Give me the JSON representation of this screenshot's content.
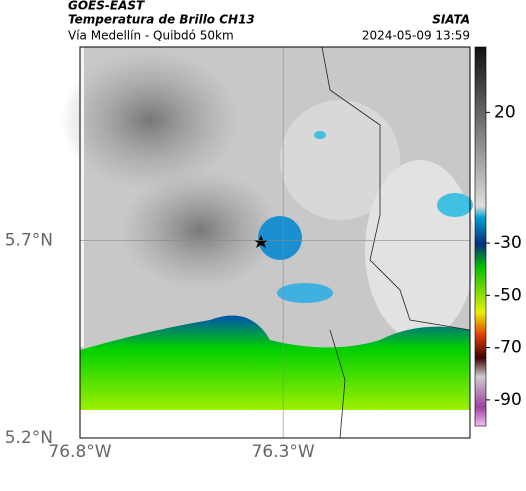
{
  "header": {
    "satellite": "GOES-EAST",
    "product": "Temperatura de Brillo CH13",
    "agency": "SIATA",
    "route": "Vía Medellín - Quibdó 50km",
    "timestamp": "2024-05-09 13:59"
  },
  "map": {
    "xlim": [
      -76.8,
      -75.84
    ],
    "ylim": [
      5.2,
      6.19
    ],
    "xticks": [
      {
        "value": -76.8,
        "label": "76.8°W"
      },
      {
        "value": -76.3,
        "label": "76.3°W"
      }
    ],
    "yticks": [
      {
        "value": 5.7,
        "label": "5.7°N"
      },
      {
        "value": 5.2,
        "label": "5.2°N"
      }
    ]
  },
  "colorbar": {
    "lim": [
      -100,
      45
    ],
    "ticks": [
      20,
      -30,
      -50,
      -70,
      -90
    ]
  }
}
